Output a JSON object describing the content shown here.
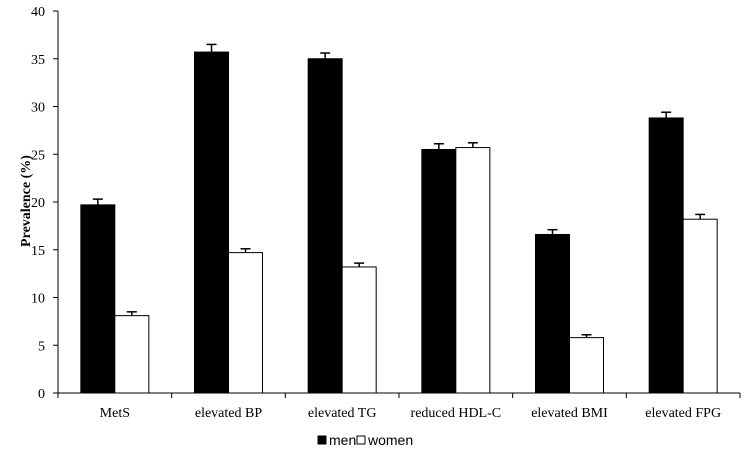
{
  "chart_data": {
    "type": "bar",
    "categories": [
      "MetS",
      "elevated BP",
      "elevated TG",
      "reduced HDL-C",
      "elevated BMI",
      "elevated FPG"
    ],
    "series": [
      {
        "name": "men",
        "color": "#000000",
        "values": [
          19.7,
          35.7,
          35.0,
          25.5,
          16.6,
          28.8
        ],
        "error": [
          0.6,
          0.8,
          0.6,
          0.6,
          0.5,
          0.6
        ]
      },
      {
        "name": "women",
        "color": "#ffffff",
        "values": [
          8.1,
          14.7,
          13.2,
          25.7,
          5.8,
          18.2
        ],
        "error": [
          0.4,
          0.4,
          0.4,
          0.5,
          0.3,
          0.5
        ]
      }
    ],
    "ylabel": "Prevalence (%)",
    "xlabel": "",
    "ylim": [
      0,
      40
    ],
    "yticks": [
      0,
      5,
      10,
      15,
      20,
      25,
      30,
      35,
      40
    ],
    "grid": false,
    "legend_position": "bottom-center"
  }
}
